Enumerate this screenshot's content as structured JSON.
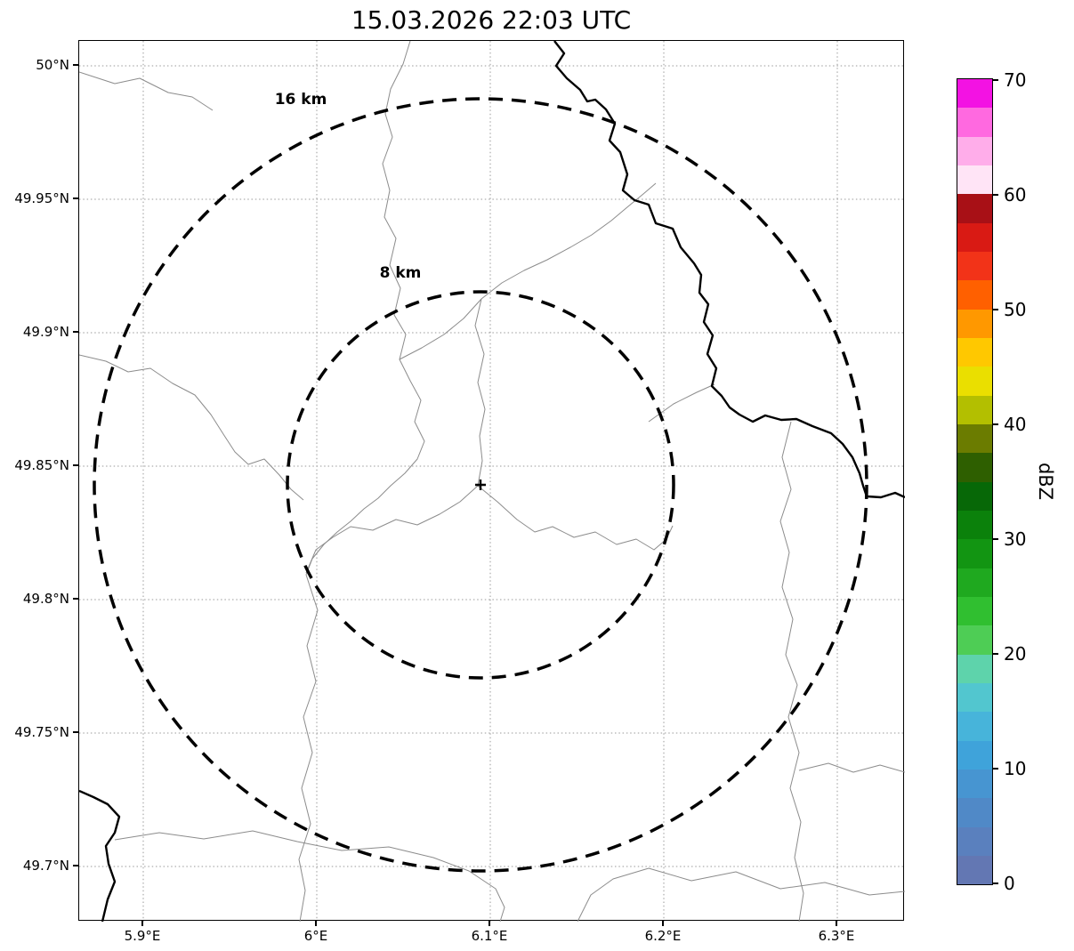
{
  "title": "15.03.2026 22:03 UTC",
  "map": {
    "lat_tick_labels": [
      "50°N",
      "49.95°N",
      "49.9°N",
      "49.85°N",
      "49.8°N",
      "49.75°N",
      "49.7°N"
    ],
    "lon_tick_labels": [
      "5.9°E",
      "6°E",
      "6.1°E",
      "6.2°E",
      "6.3°E"
    ],
    "range_ring_labels": {
      "outer": "16 km",
      "inner": "8 km"
    },
    "center_marker_symbol": "+"
  },
  "colorbar": {
    "label": "dBZ",
    "tick_values": [
      0,
      10,
      20,
      30,
      40,
      50,
      60,
      70
    ],
    "unit_colors_bottom_to_top": [
      "#6377b3",
      "#5a80be",
      "#5089c7",
      "#4795d1",
      "#3fa3da",
      "#47b4da",
      "#52c6cf",
      "#5ed3ab",
      "#4ecd55",
      "#30bf30",
      "#1fa91f",
      "#129512",
      "#0b810b",
      "#076807",
      "#2e5f00",
      "#6b7c00",
      "#b3bf00",
      "#eadf00",
      "#ffc800",
      "#ff9800",
      "#ff6000",
      "#f23318",
      "#d91a14",
      "#a81016",
      "#ffe4f6",
      "#ffadea",
      "#ff69e0",
      "#f312e3"
    ]
  },
  "chart_data": {
    "type": "map",
    "title": "15.03.2026 22:03 UTC",
    "xlabel_ticks": [
      "5.9°E",
      "6°E",
      "6.1°E",
      "6.2°E",
      "6.3°E"
    ],
    "ylabel_ticks": [
      "50°N",
      "49.95°N",
      "49.9°N",
      "49.85°N",
      "49.8°N",
      "49.75°N",
      "49.7°N"
    ],
    "lon_range": [
      5.863,
      6.34
    ],
    "lat_range": [
      49.679,
      50.009
    ],
    "radar_center": {
      "lon": 6.094,
      "lat": 49.843
    },
    "range_rings_km": [
      8,
      16
    ],
    "colorbar": {
      "label": "dBZ",
      "min": 0,
      "max": 70,
      "tick_step": 10
    },
    "reflectivity_echoes_visible": "none",
    "grid": "dotted lat/lon graticule",
    "overlays": [
      "country border (thick black line)",
      "administrative boundaries (thin gray lines)"
    ]
  }
}
